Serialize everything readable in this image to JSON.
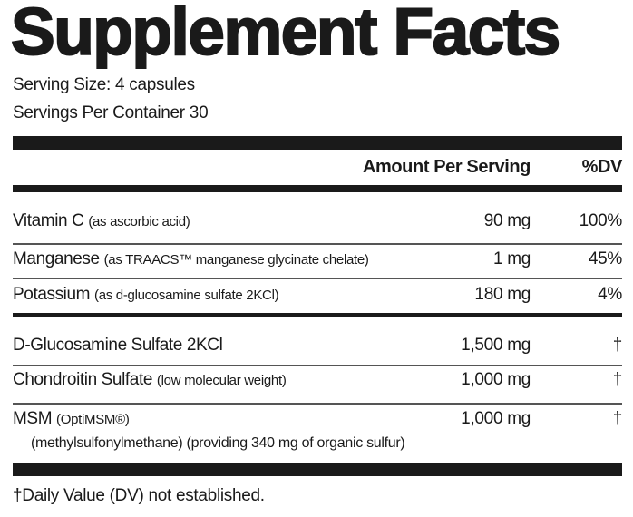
{
  "title": "Supplement Facts",
  "serving_size": "Serving Size: 4 capsules",
  "servings_per_container": "Servings Per Container 30",
  "header": {
    "amount": "Amount Per Serving",
    "dv": "%DV"
  },
  "rows": [
    {
      "name": "Vitamin C",
      "detail": "(as ascorbic acid)",
      "amount": "90 mg",
      "dv": "100%"
    },
    {
      "name": "Manganese",
      "detail": "(as TRAACS™ manganese glycinate chelate)",
      "amount": "1 mg",
      "dv": "45%"
    },
    {
      "name": "Potassium",
      "detail": "(as d-glucosamine sulfate 2KCl)",
      "amount": "180 mg",
      "dv": "4%"
    },
    {
      "name": "D-Glucosamine Sulfate 2KCl",
      "detail": "",
      "amount": "1,500 mg",
      "dv": "†"
    },
    {
      "name": "Chondroitin Sulfate",
      "detail": "(low molecular weight)",
      "amount": "1,000 mg",
      "dv": "†"
    },
    {
      "name": "MSM",
      "detail": "(OptiMSM®)",
      "detail2": "(methylsulfonylmethane) (providing 340 mg of organic sulfur)",
      "amount": "1,000 mg",
      "dv": "†"
    }
  ],
  "footnote": "†Daily Value (DV) not established."
}
